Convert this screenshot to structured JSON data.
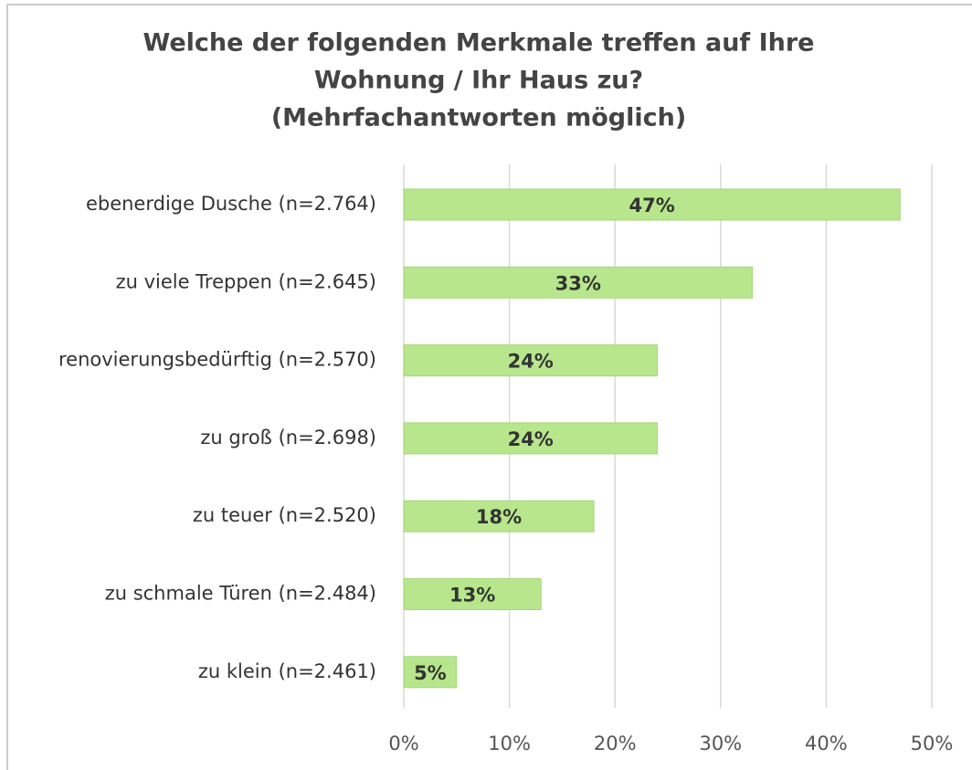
{
  "chart_data": {
    "type": "hbar",
    "title": [
      "Welche der folgenden Merkmale treffen auf Ihre",
      "Wohnung / Ihr Haus zu?",
      "(Mehrfachantworten möglich)"
    ],
    "categories": [
      "ebenerdige Dusche (n=2.764)",
      "zu viele Treppen (n=2.645)",
      "renovierungsbedürftig (n=2.570)",
      "zu groß (n=2.698)",
      "zu teuer (n=2.520)",
      "zu schmale Türen (n=2.484)",
      "zu klein (n=2.461)"
    ],
    "values": [
      47,
      33,
      24,
      24,
      18,
      13,
      5
    ],
    "value_labels": [
      "47%",
      "33%",
      "24%",
      "24%",
      "18%",
      "13%",
      "5%"
    ],
    "color": "#b7e68c",
    "xlim": [
      0,
      50
    ],
    "xticks": [
      {
        "value": 0,
        "label": "0%"
      },
      {
        "value": 10,
        "label": "10%"
      },
      {
        "value": 20,
        "label": "20%"
      },
      {
        "value": 30,
        "label": "30%"
      },
      {
        "value": 40,
        "label": "40%"
      },
      {
        "value": 50,
        "label": "50%"
      }
    ],
    "grid": true
  }
}
